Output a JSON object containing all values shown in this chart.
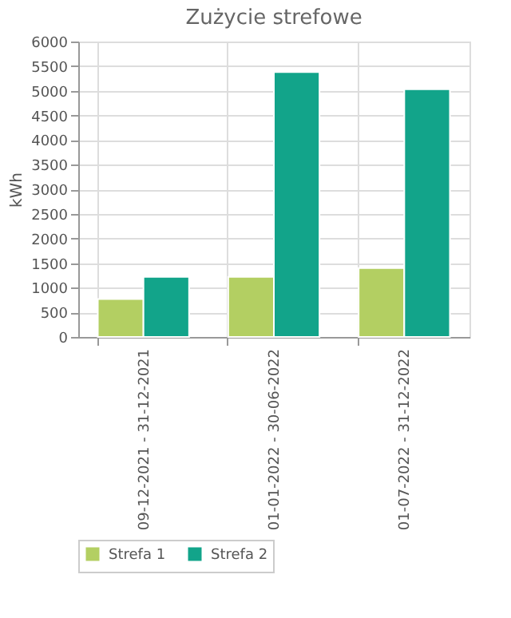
{
  "chart_data": {
    "type": "bar",
    "title": "Zużycie strefowe",
    "ylabel": "kWh",
    "categories": [
      "09-12-2021 - 31-12-2021",
      "01-01-2022 - 30-06-2022",
      "01-07-2022 - 31-12-2022"
    ],
    "series": [
      {
        "name": "Strefa 1",
        "color": "#b3cf62",
        "values": [
          770,
          1220,
          1400
        ]
      },
      {
        "name": "Strefa 2",
        "color": "#12a48a",
        "values": [
          1220,
          5380,
          5030
        ]
      }
    ],
    "ylim": [
      0,
      6000
    ],
    "yticks": [
      0,
      500,
      1000,
      1500,
      2000,
      2500,
      3000,
      3500,
      4000,
      4500,
      5000,
      5500,
      6000
    ],
    "grid": true,
    "legend": "bottom"
  }
}
